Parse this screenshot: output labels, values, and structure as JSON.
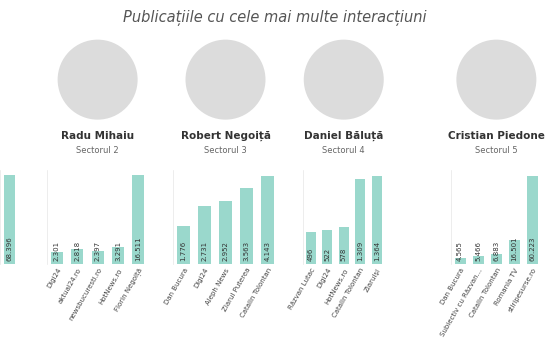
{
  "title": "Publicațiile cu cele mai multe interacțiuni",
  "chart_data": [
    {
      "type": "bar",
      "categories": [
        null
      ],
      "values": [
        68396
      ],
      "value_labels": [
        "68.396"
      ],
      "ylim": [
        0,
        72000
      ],
      "color": "#9ad8cc",
      "data_labels": true,
      "tick_labels": false
    },
    {
      "type": "bar",
      "title": "Radu Mihaiu",
      "subtitle": "Sectorul 2",
      "categories": [
        "Digi24",
        "aktual24.ro",
        "newsbucuresti.ro",
        "HotNews.ro",
        "Florin Negoiță"
      ],
      "values": [
        2301,
        2818,
        2397,
        3291,
        16511
      ],
      "value_labels": [
        "2.301",
        "2.818",
        "2.397",
        "3.291",
        "16.511"
      ],
      "ylim": [
        0,
        17500
      ],
      "color": "#9ad8cc",
      "data_labels": true,
      "tick_labels": "x"
    },
    {
      "type": "bar",
      "title": "Robert Negoiță",
      "subtitle": "Sectorul 3",
      "categories": [
        "Dan Bucura",
        "Digi24",
        "Aleph News",
        "Ziarul Puterea",
        "Catalin Tolontan"
      ],
      "values": [
        1776,
        2731,
        2952,
        3563,
        4143
      ],
      "value_labels": [
        "1.776",
        "2.731",
        "2.952",
        "3.563",
        "4.143"
      ],
      "ylim": [
        0,
        4400
      ],
      "color": "#9ad8cc",
      "data_labels": true,
      "tick_labels": "x"
    },
    {
      "type": "bar",
      "title": "Daniel Băluță",
      "subtitle": "Sectorul 4",
      "categories": [
        "Răzvan Lutac",
        "Digi24",
        "HotNews.ro",
        "Catalin Tolontan",
        "Ziarulși"
      ],
      "values": [
        496,
        522,
        578,
        1309,
        1364
      ],
      "value_labels": [
        "496",
        "522",
        "578",
        "1.309",
        "1.364"
      ],
      "ylim": [
        0,
        1450
      ],
      "color": "#9ad8cc",
      "data_labels": true,
      "tick_labels": "x"
    },
    {
      "type": "bar",
      "title": "Cristian Piedone",
      "subtitle": "Sectorul 5",
      "categories": [
        "Dan Bucura",
        "Subiectiv cu Răzvan...",
        "Catalin Tolontan",
        "Romania TV",
        "stiripesurse.ro"
      ],
      "values": [
        4565,
        5466,
        6883,
        16501,
        60223
      ],
      "value_labels": [
        "4.565",
        "5.466",
        "6.883",
        "16.501",
        "60.223"
      ],
      "ylim": [
        0,
        64000
      ],
      "color": "#9ad8cc",
      "data_labels": true,
      "tick_labels": "x"
    }
  ]
}
